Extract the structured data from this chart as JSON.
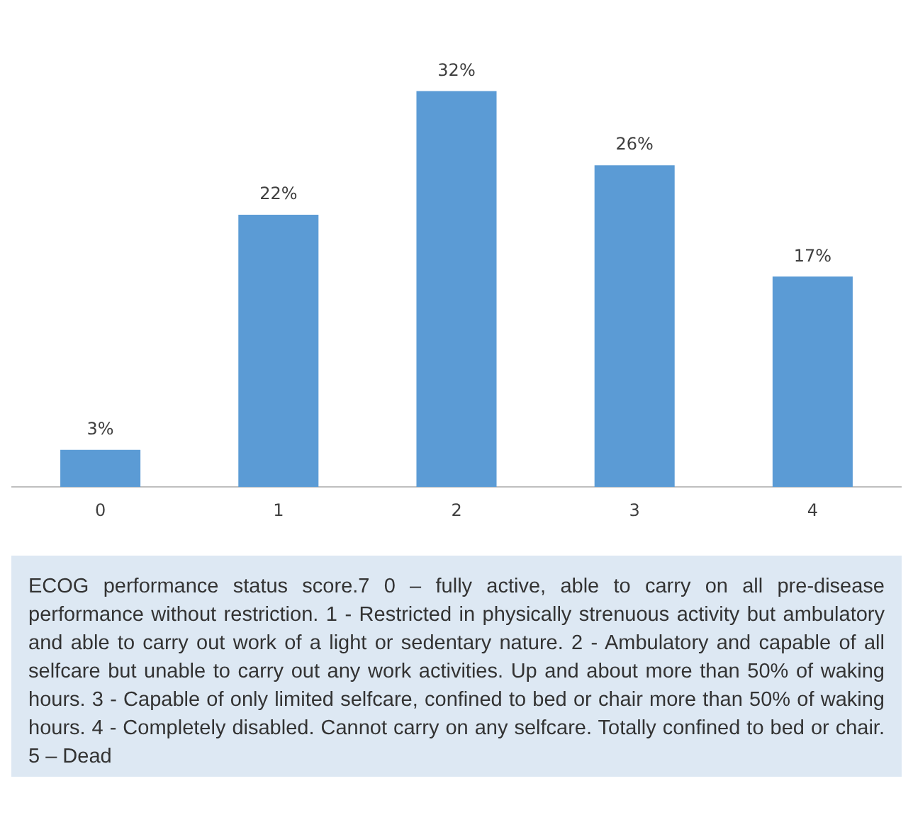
{
  "chart_data": {
    "type": "bar",
    "categories": [
      "0",
      "1",
      "2",
      "3",
      "4"
    ],
    "values": [
      3,
      22,
      32,
      26,
      17
    ],
    "value_labels": [
      "3%",
      "22%",
      "32%",
      "26%",
      "17%"
    ],
    "color": "#5b9bd5",
    "grid": false,
    "legend": false,
    "annotations": [
      "ECOG performance status score.7 0 – fully active, able to carry on all pre-disease performance without restriction. 1 - Restricted in physically strenuous activity but ambulatory and able to carry out work of a light or sedentary nature. 2 - Ambulatory and capable of all selfcare but unable to carry out any work activities. Up and about more than 50% of waking hours. 3 - Capable of only limited selfcare, confined to bed or chair more than 50% of waking hours. 4 - Completely disabled. Cannot carry on any selfcare. Totally confined to bed or chair. 5 – Dead"
    ]
  }
}
